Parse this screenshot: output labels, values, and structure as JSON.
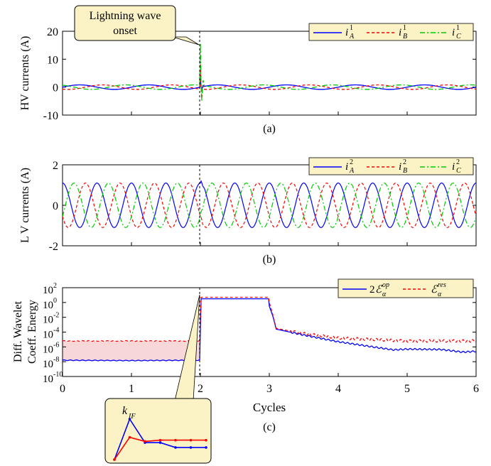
{
  "chart_data": [
    {
      "type": "line",
      "panel_label": "(a)",
      "ylabel": "HV currents (A)",
      "xlim": [
        0,
        6
      ],
      "ylim": [
        -10,
        20
      ],
      "yticks": [
        -10,
        0,
        10,
        20
      ],
      "ytick_labels": [
        "-10",
        "0",
        "10",
        "20"
      ],
      "grid": false,
      "legend_position": "top-right",
      "vertical_marker_x": 2,
      "annotation": {
        "text_line1": "Lightning wave",
        "text_line2": "onset",
        "target_x": 2,
        "target_y": 15
      },
      "series": [
        {
          "name": "i_A^1",
          "color": "#0000ff",
          "style": "solid",
          "amplitude": 0.8,
          "phase_deg": 0,
          "frequency_cycles": 1
        },
        {
          "name": "i_B^1",
          "color": "#ff0000",
          "style": "dashed",
          "amplitude": 0.8,
          "phase_deg": -120,
          "frequency_cycles": 1
        },
        {
          "name": "i_C^1",
          "color": "#00cc00",
          "style": "dashdot",
          "amplitude": 0.8,
          "phase_deg": 120,
          "frequency_cycles": 1
        }
      ],
      "transient": {
        "x": 2,
        "peak_i_C": 15,
        "peak_i_B": 9,
        "peak_i_A": 3
      }
    },
    {
      "type": "line",
      "panel_label": "(b)",
      "ylabel": "L V currents (A)",
      "xlim": [
        0,
        6
      ],
      "ylim": [
        -2,
        2
      ],
      "yticks": [
        -2,
        0,
        2
      ],
      "ytick_labels": [
        "-2",
        "0",
        "2"
      ],
      "grid": false,
      "legend_position": "top-right",
      "vertical_marker_x": 2,
      "series": [
        {
          "name": "i_A^2",
          "color": "#0000ff",
          "style": "solid",
          "amplitude": 1.1,
          "phase_deg": 90,
          "frequency_cycles": 2
        },
        {
          "name": "i_B^2",
          "color": "#ff0000",
          "style": "dashed",
          "amplitude": 1.1,
          "phase_deg": 210,
          "frequency_cycles": 2
        },
        {
          "name": "i_C^2",
          "color": "#00cc00",
          "style": "dashdot",
          "amplitude": 1.1,
          "phase_deg": -30,
          "frequency_cycles": 2
        }
      ]
    },
    {
      "type": "line",
      "panel_label": "(c)",
      "ylabel_line1": "Diff. Wavelet",
      "ylabel_line2": "Coeff. Energy",
      "xlabel": "Cycles",
      "scale": "log",
      "xlim": [
        0,
        6
      ],
      "ylim_exp": [
        -10,
        2
      ],
      "yticks_exp": [
        2,
        0,
        -2,
        -4,
        -6,
        -8,
        -10
      ],
      "xticks": [
        0,
        1,
        2,
        3,
        4,
        5,
        6
      ],
      "xtick_labels": [
        "0",
        "1",
        "2",
        "3",
        "4",
        "5",
        "6"
      ],
      "grid": false,
      "legend_position": "top-right",
      "vertical_marker_x": 2,
      "shaded_band_exp": [
        -7.9,
        -5.2
      ],
      "shaded_color": "#f7d7d7",
      "series": [
        {
          "name": "2E_alpha^op",
          "color": "#0000ff",
          "style": "solid",
          "x": [
            0,
            1,
            1.99,
            2.01,
            2.99,
            3.0,
            3.05,
            3.1,
            3.5,
            4.0,
            4.5,
            4.8,
            5.0,
            5.5,
            5.8,
            6.0
          ],
          "log_y": [
            -7.8,
            -7.85,
            -7.8,
            0.5,
            0.5,
            -0.5,
            -1.8,
            -3.6,
            -4.4,
            -5.3,
            -6.0,
            -6.4,
            -6.3,
            -6.35,
            -6.7,
            -6.6
          ]
        },
        {
          "name": "E_alpha^res",
          "color": "#ff0000",
          "style": "dashed",
          "x": [
            0,
            1.99,
            2.01,
            2.99,
            3.0,
            3.05,
            3.1,
            3.5,
            4.0,
            4.5,
            5.0,
            5.5,
            6.0
          ],
          "log_y": [
            -5.2,
            -5.2,
            0.7,
            0.7,
            0.0,
            -1.6,
            -3.5,
            -4.2,
            -4.8,
            -5.0,
            -5.2,
            -5.2,
            -5.2
          ]
        }
      ],
      "inset": {
        "label": "k_IF",
        "series": [
          {
            "name": "2E_alpha^op",
            "color": "#0000ff",
            "points": [
              [
                0,
                0
              ],
              [
                1,
                1
              ],
              [
                2,
                0.42
              ],
              [
                3,
                0.42
              ],
              [
                4,
                0.3
              ],
              [
                5,
                0.3
              ],
              [
                6,
                0.3
              ]
            ]
          },
          {
            "name": "E_alpha^res",
            "color": "#ff0000",
            "points": [
              [
                0,
                0
              ],
              [
                1,
                0.55
              ],
              [
                2,
                0.45
              ],
              [
                3,
                0.48
              ],
              [
                4,
                0.48
              ],
              [
                5,
                0.48
              ],
              [
                6,
                0.48
              ]
            ]
          }
        ]
      }
    }
  ]
}
